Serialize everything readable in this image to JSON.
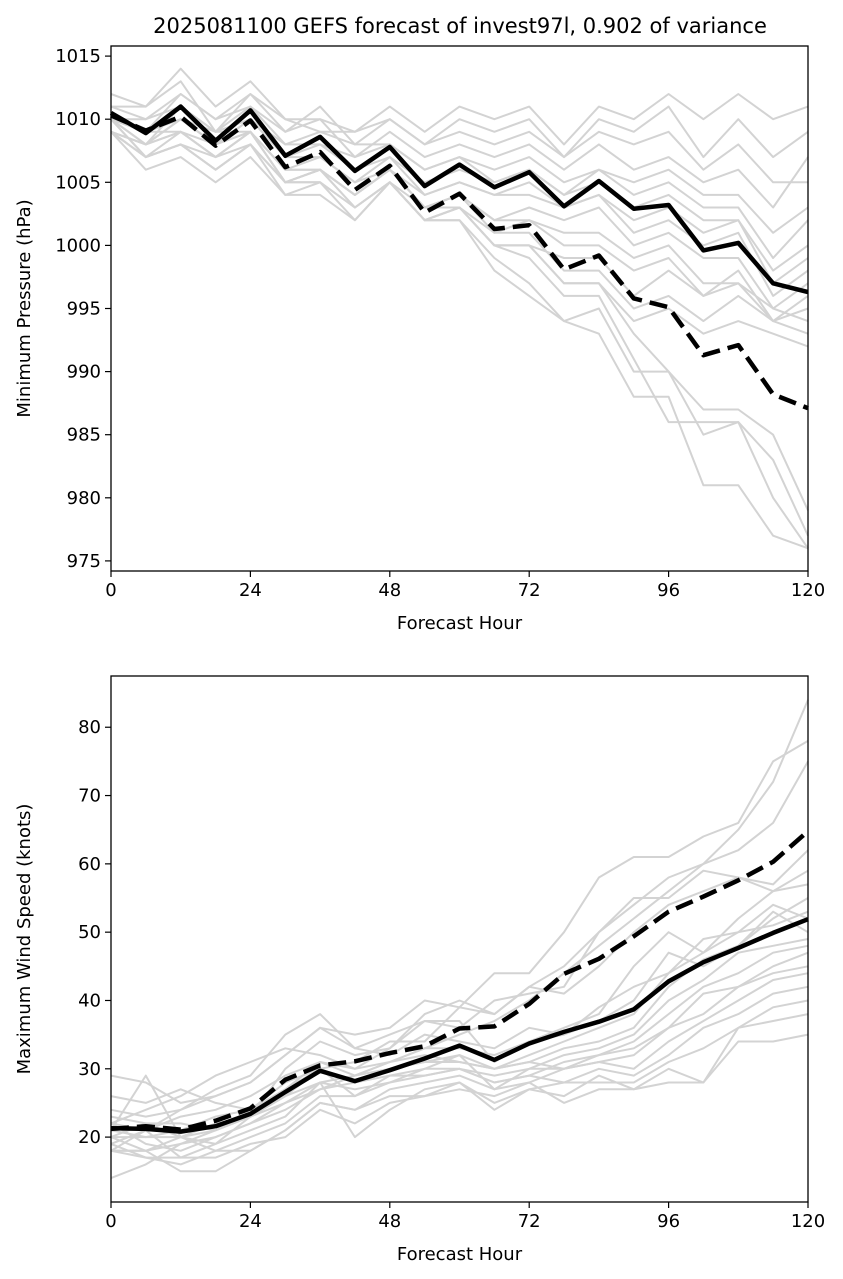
{
  "title": "2025081100 GEFS forecast of invest97l, 0.902 of variance",
  "colors": {
    "member": "#d3d3d3",
    "main": "#000000"
  },
  "chart_data": [
    {
      "type": "line",
      "xlabel": "Forecast Hour",
      "ylabel": "Minimum Pressure (hPa)",
      "xlim": [
        0,
        120
      ],
      "ylim": [
        974.2,
        1015.8
      ],
      "xticks": [
        0,
        24,
        48,
        72,
        96,
        120
      ],
      "yticks": [
        975,
        980,
        985,
        990,
        995,
        1000,
        1005,
        1010,
        1015
      ],
      "x": [
        0,
        6,
        12,
        18,
        24,
        30,
        36,
        42,
        48,
        54,
        60,
        66,
        72,
        78,
        84,
        90,
        96,
        102,
        108,
        114,
        120
      ],
      "series": [
        {
          "style": "solid",
          "values": [
            1010.5,
            1008.9,
            1011.0,
            1008.3,
            1010.7,
            1007.1,
            1008.6,
            1005.9,
            1007.8,
            1004.7,
            1006.4,
            1004.6,
            1005.8,
            1003.1,
            1005.1,
            1002.9,
            1003.2,
            999.6,
            1000.2,
            997.0,
            996.3
          ]
        },
        {
          "style": "dashed",
          "values": [
            1010.3,
            1009.1,
            1010.2,
            1007.9,
            1009.9,
            1006.2,
            1007.4,
            1004.4,
            1006.3,
            1002.6,
            1004.1,
            1001.3,
            1001.6,
            998.1,
            999.2,
            995.8,
            995.1,
            991.3,
            992.1,
            988.2,
            987.1
          ]
        }
      ],
      "members": [
        [
          1012,
          1011,
          1014,
          1011,
          1013,
          1010,
          1010,
          1009,
          1011,
          1009,
          1011,
          1010,
          1011,
          1008,
          1011,
          1010,
          1012,
          1010,
          1012,
          1010,
          1011
        ],
        [
          1011,
          1010,
          1012,
          1010,
          1012,
          1009,
          1011,
          1008,
          1010,
          1008,
          1010,
          1009,
          1010,
          1007,
          1010,
          1009,
          1011,
          1007,
          1010,
          1007,
          1009
        ],
        [
          1011,
          1011,
          1013,
          1009,
          1012,
          1010,
          1009,
          1009,
          1010,
          1008,
          1009,
          1008,
          1009,
          1007,
          1009,
          1008,
          1009,
          1006,
          1008,
          1005,
          1005
        ],
        [
          1010,
          1009,
          1012,
          1010,
          1011,
          1009,
          1010,
          1007,
          1009,
          1007,
          1008,
          1007,
          1008,
          1006,
          1008,
          1006,
          1007,
          1005,
          1006,
          1003,
          1007
        ],
        [
          1010,
          1010,
          1011,
          1009,
          1011,
          1008,
          1009,
          1008,
          1008,
          1006,
          1007,
          1006,
          1007,
          1005,
          1006,
          1005,
          1006,
          1004,
          1004,
          1001,
          1003
        ],
        [
          1010,
          1009,
          1010,
          1008,
          1010,
          1008,
          1008,
          1007,
          1008,
          1006,
          1007,
          1005,
          1006,
          1004,
          1006,
          1004,
          1005,
          1003,
          1003,
          999,
          1002
        ],
        [
          1009,
          1008,
          1011,
          1009,
          1010,
          1007,
          1008,
          1006,
          1007,
          1005,
          1006,
          1005,
          1006,
          1004,
          1005,
          1003,
          1004,
          1002,
          1002,
          998,
          1000
        ],
        [
          1010,
          1009,
          1009,
          1008,
          1010,
          1007,
          1007,
          1005,
          1007,
          1004,
          1005,
          1004,
          1005,
          1003,
          1004,
          1002,
          1003,
          1001,
          1002,
          997,
          999
        ],
        [
          1009,
          1008,
          1010,
          1008,
          1009,
          1006,
          1007,
          1005,
          1006,
          1004,
          1005,
          1004,
          1004,
          1003,
          1004,
          1001,
          1002,
          1000,
          1001,
          996,
          998
        ],
        [
          1010,
          1009,
          1010,
          1009,
          1009,
          1006,
          1006,
          1004,
          1006,
          1003,
          1004,
          1002,
          1003,
          1002,
          1003,
          1000,
          1001,
          999,
          999,
          995,
          997
        ],
        [
          1009,
          1008,
          1009,
          1007,
          1009,
          1005,
          1006,
          1004,
          1006,
          1003,
          1004,
          1002,
          1002,
          1001,
          1001,
          999,
          1000,
          997,
          997,
          994,
          996
        ],
        [
          1010,
          1008,
          1010,
          1008,
          1009,
          1005,
          1006,
          1003,
          1005,
          1002,
          1003,
          1001,
          1002,
          1000,
          1000,
          998,
          999,
          996,
          998,
          994,
          995
        ],
        [
          1009,
          1007,
          1009,
          1007,
          1008,
          1005,
          1005,
          1003,
          1005,
          1002,
          1003,
          1000,
          1000,
          999,
          999,
          996,
          998,
          996,
          997,
          995,
          994
        ],
        [
          1010,
          1007,
          1008,
          1006,
          1008,
          1004,
          1005,
          1002,
          1005,
          1003,
          1004,
          1001,
          1001,
          998,
          998,
          995,
          996,
          994,
          996,
          994,
          993
        ],
        [
          1009,
          1006,
          1007,
          1005,
          1007,
          1004,
          1004,
          1002,
          1005,
          1002,
          1003,
          1000,
          1000,
          997,
          997,
          994,
          995,
          993,
          994,
          993,
          992
        ],
        [
          1010,
          1007,
          1008,
          1006,
          1008,
          1005,
          1005,
          1003,
          1005,
          1002,
          1002,
          998,
          996,
          994,
          995,
          990,
          990,
          985,
          986,
          980,
          976
        ],
        [
          1009,
          1007,
          1008,
          1007,
          1009,
          1005,
          1006,
          1003,
          1005,
          1002,
          1002,
          999,
          997,
          994,
          993,
          988,
          988,
          981,
          981,
          977,
          976
        ],
        [
          1010,
          1008,
          1009,
          1007,
          1009,
          1006,
          1006,
          1004,
          1006,
          1003,
          1003,
          1000,
          999,
          996,
          996,
          991,
          986,
          986,
          986,
          983,
          977
        ],
        [
          1009,
          1007,
          1008,
          1006,
          1008,
          1005,
          1006,
          1004,
          1006,
          1003,
          1003,
          1000,
          1000,
          997,
          997,
          993,
          990,
          987,
          987,
          985,
          979
        ]
      ]
    },
    {
      "type": "line",
      "xlabel": "Forecast Hour",
      "ylabel": "Maximum Wind Speed (knots)",
      "xlim": [
        0,
        120
      ],
      "ylim": [
        10.5,
        87.5
      ],
      "xticks": [
        0,
        24,
        48,
        72,
        96,
        120
      ],
      "yticks": [
        20,
        30,
        40,
        50,
        60,
        70,
        80
      ],
      "x": [
        0,
        6,
        12,
        18,
        24,
        30,
        36,
        42,
        48,
        54,
        60,
        66,
        72,
        78,
        84,
        90,
        96,
        102,
        108,
        114,
        120
      ],
      "series": [
        {
          "style": "solid",
          "values": [
            21.3,
            21.2,
            20.8,
            21.6,
            23.4,
            26.6,
            29.7,
            28.2,
            29.8,
            31.5,
            33.4,
            31.3,
            33.7,
            35.4,
            36.9,
            38.7,
            42.8,
            45.6,
            47.7,
            49.9,
            51.9
          ]
        },
        {
          "style": "dashed",
          "values": [
            21.2,
            21.6,
            21.1,
            22.4,
            24.2,
            28.4,
            30.5,
            31.1,
            32.3,
            33.3,
            35.9,
            36.2,
            39.5,
            43.9,
            46.1,
            49.4,
            53.0,
            55.2,
            57.6,
            60.3,
            64.8
          ]
        }
      ],
      "members": [
        [
          14,
          16,
          19,
          20,
          22,
          25,
          27,
          29,
          31,
          33,
          35,
          37,
          40,
          44,
          48,
          52,
          56,
          60,
          65,
          72,
          84
        ],
        [
          18,
          21,
          24,
          26,
          28,
          32,
          36,
          35,
          36,
          40,
          39,
          44,
          44,
          50,
          58,
          61,
          61,
          64,
          66,
          75,
          78
        ],
        [
          23,
          22,
          20,
          19,
          23,
          30,
          34,
          32,
          33,
          38,
          40,
          38,
          42,
          45,
          50,
          54,
          58,
          60,
          62,
          66,
          75
        ],
        [
          20,
          20,
          21,
          23,
          24,
          27,
          31,
          30,
          33,
          37,
          36,
          40,
          41,
          42,
          50,
          55,
          55,
          59,
          58,
          57,
          62
        ],
        [
          26,
          25,
          27,
          25,
          24,
          27,
          30,
          31,
          34,
          34,
          39,
          38,
          42,
          41,
          45,
          50,
          54,
          56,
          58,
          56,
          59
        ],
        [
          24,
          23,
          24,
          27,
          29,
          35,
          38,
          33,
          35,
          37,
          37,
          31,
          34,
          36,
          38,
          45,
          50,
          47,
          52,
          56,
          57
        ],
        [
          22,
          21,
          23,
          24,
          26,
          29,
          31,
          29,
          31,
          33,
          33,
          32,
          34,
          35,
          37,
          40,
          47,
          45,
          48,
          52,
          55
        ],
        [
          29,
          28,
          25,
          26,
          28,
          32,
          36,
          33,
          32,
          35,
          34,
          33,
          36,
          35,
          39,
          42,
          44,
          49,
          50,
          51,
          53
        ],
        [
          21,
          20,
          20,
          22,
          23,
          26,
          30,
          28,
          30,
          31,
          32,
          30,
          32,
          34,
          36,
          38,
          44,
          47,
          50,
          54,
          52
        ],
        [
          20,
          22,
          22,
          21,
          23,
          25,
          28,
          29,
          30,
          31,
          31,
          30,
          31,
          33,
          34,
          36,
          42,
          46,
          48,
          53,
          50
        ],
        [
          22,
          19,
          18,
          20,
          22,
          24,
          27,
          28,
          29,
          30,
          30,
          29,
          30,
          32,
          33,
          35,
          40,
          43,
          47,
          48,
          49
        ],
        [
          19,
          21,
          17,
          19,
          21,
          23,
          28,
          27,
          28,
          30,
          32,
          27,
          30,
          30,
          32,
          34,
          38,
          42,
          44,
          47,
          48
        ],
        [
          21,
          29,
          20,
          18,
          20,
          22,
          26,
          26,
          28,
          29,
          30,
          28,
          29,
          31,
          32,
          33,
          36,
          41,
          42,
          45,
          47
        ],
        [
          18,
          18,
          15,
          15,
          18,
          21,
          25,
          24,
          27,
          28,
          29,
          27,
          28,
          30,
          31,
          32,
          36,
          38,
          42,
          44,
          45
        ],
        [
          22,
          24,
          26,
          29,
          31,
          33,
          32,
          30,
          31,
          32,
          31,
          30,
          31,
          30,
          31,
          30,
          34,
          37,
          40,
          43,
          44
        ],
        [
          20,
          18,
          19,
          21,
          24,
          28,
          30,
          26,
          29,
          29,
          30,
          28,
          29,
          28,
          30,
          29,
          32,
          36,
          38,
          41,
          42
        ],
        [
          19,
          17,
          17,
          17,
          19,
          20,
          24,
          22,
          25,
          26,
          28,
          25,
          27,
          28,
          28,
          28,
          31,
          33,
          36,
          39,
          40
        ],
        [
          18,
          18,
          20,
          21,
          23,
          26,
          28,
          20,
          24,
          27,
          28,
          24,
          27,
          26,
          29,
          27,
          30,
          28,
          36,
          37,
          38
        ],
        [
          18,
          17,
          16,
          18,
          18,
          21,
          25,
          24,
          26,
          26,
          27,
          26,
          28,
          25,
          27,
          27,
          28,
          28,
          34,
          34,
          35
        ]
      ]
    }
  ]
}
